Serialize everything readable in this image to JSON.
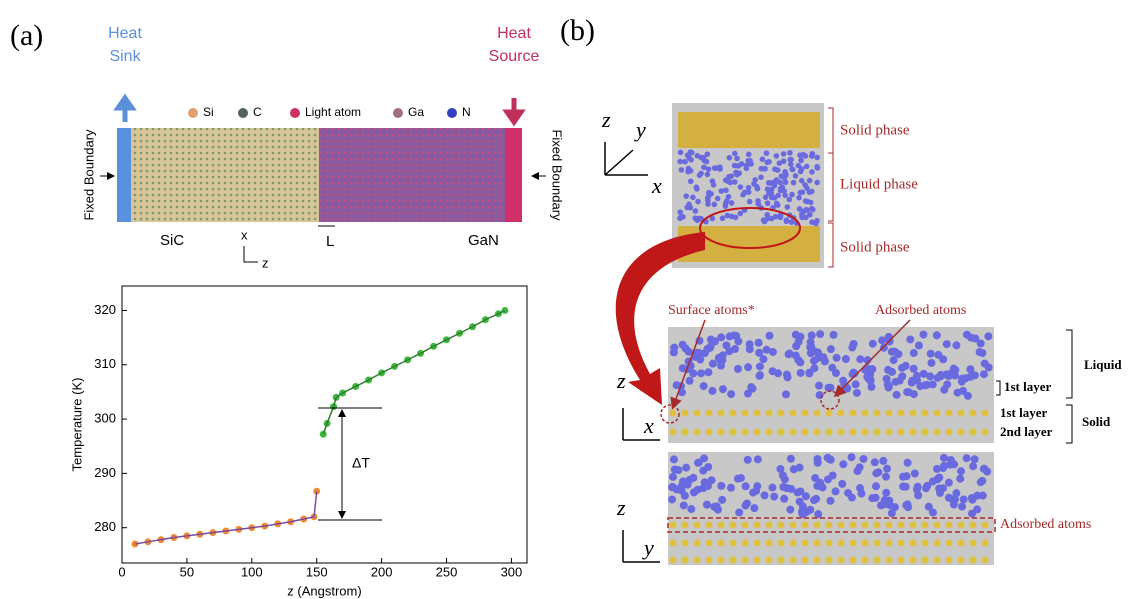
{
  "panel_a": {
    "label": "(a)",
    "heat_sink": [
      "Heat",
      "Sink"
    ],
    "heat_source": [
      "Heat",
      "Source"
    ],
    "legend": [
      "Si",
      "C",
      "Light atom",
      "Ga",
      "N"
    ],
    "fixed_boundary_left": "Fixed Boundary",
    "fixed_boundary_right": "Fixed Boundary",
    "left_material": "SiC",
    "right_material": "GaN",
    "axis_x": "x",
    "axis_z": "z",
    "length_label": "L"
  },
  "chart_data": {
    "type": "scatter",
    "xlabel": "z (Angstrom)",
    "ylabel": "Temperature (K)",
    "annotation": "ΔT",
    "xlim": [
      0,
      312
    ],
    "xticks": [
      0,
      50,
      100,
      150,
      200,
      250,
      300
    ],
    "ylim": [
      273.5,
      324.5
    ],
    "yticks": [
      280,
      290,
      300,
      310,
      320
    ],
    "series": [
      {
        "color": "#f08a30",
        "x": [
          10,
          20,
          30,
          40,
          50,
          60,
          70,
          80,
          90,
          100,
          110,
          120,
          130,
          140,
          148,
          150
        ],
        "values": [
          277,
          277.4,
          277.8,
          278.2,
          278.5,
          278.8,
          279.1,
          279.4,
          279.7,
          280,
          280.3,
          280.7,
          281.1,
          281.6,
          282,
          286.7
        ]
      },
      {
        "color": "#3fb83f",
        "x": [
          155,
          158,
          163,
          165,
          170,
          180,
          190,
          200,
          210,
          220,
          230,
          240,
          250,
          260,
          270,
          280,
          290,
          295
        ],
        "values": [
          297.2,
          299.2,
          302.3,
          304,
          304.8,
          306,
          307.2,
          308.5,
          309.7,
          310.9,
          312.1,
          313.4,
          314.6,
          315.8,
          317,
          318.3,
          319.4,
          320
        ]
      }
    ]
  },
  "panel_b": {
    "label": "(b)",
    "top_axes": [
      "z",
      "y",
      "x"
    ],
    "phases": [
      "Solid phase",
      "Liquid phase",
      "Solid phase"
    ],
    "surface_atoms": "Surface atoms*",
    "adsorbed_atoms": "Adsorbed atoms",
    "liquid": "Liquid",
    "liquid_layer": "1st layer",
    "solid_layers": [
      "1st layer",
      "2nd layer"
    ],
    "solid": "Solid",
    "middle_axes": [
      "z",
      "x"
    ],
    "bottom_axes": [
      "z",
      "y"
    ],
    "bottom_adsorbed": "Adsorbed atoms"
  }
}
